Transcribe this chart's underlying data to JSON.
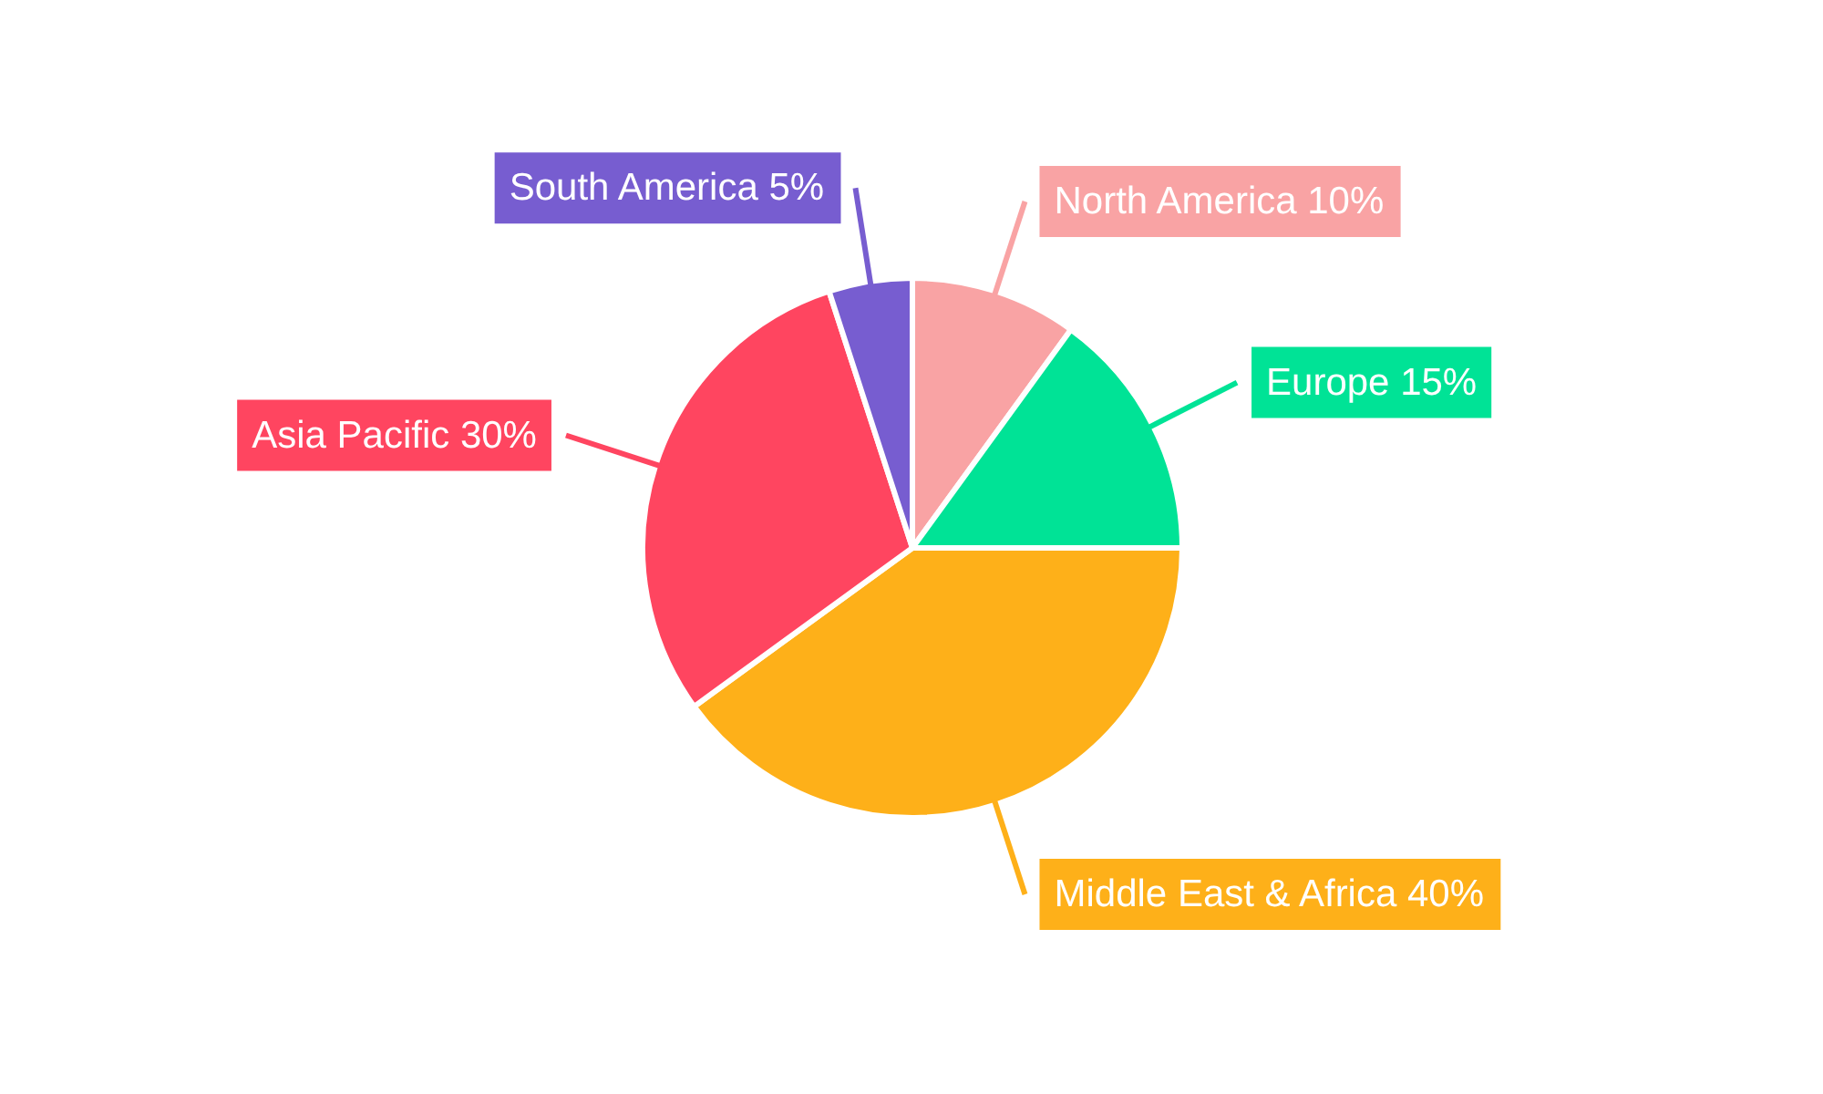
{
  "chart_data": {
    "type": "pie",
    "categories": [
      "North America",
      "Europe",
      "Middle East & Africa",
      "Asia Pacific",
      "South America"
    ],
    "values": [
      10,
      15,
      40,
      30,
      5
    ],
    "value_labels": [
      "10%",
      "15%",
      "40%",
      "30%",
      "5%"
    ],
    "colors": [
      "#f9a3a4",
      "#00e396",
      "#feb019",
      "#ff4560",
      "#775dd0"
    ]
  }
}
